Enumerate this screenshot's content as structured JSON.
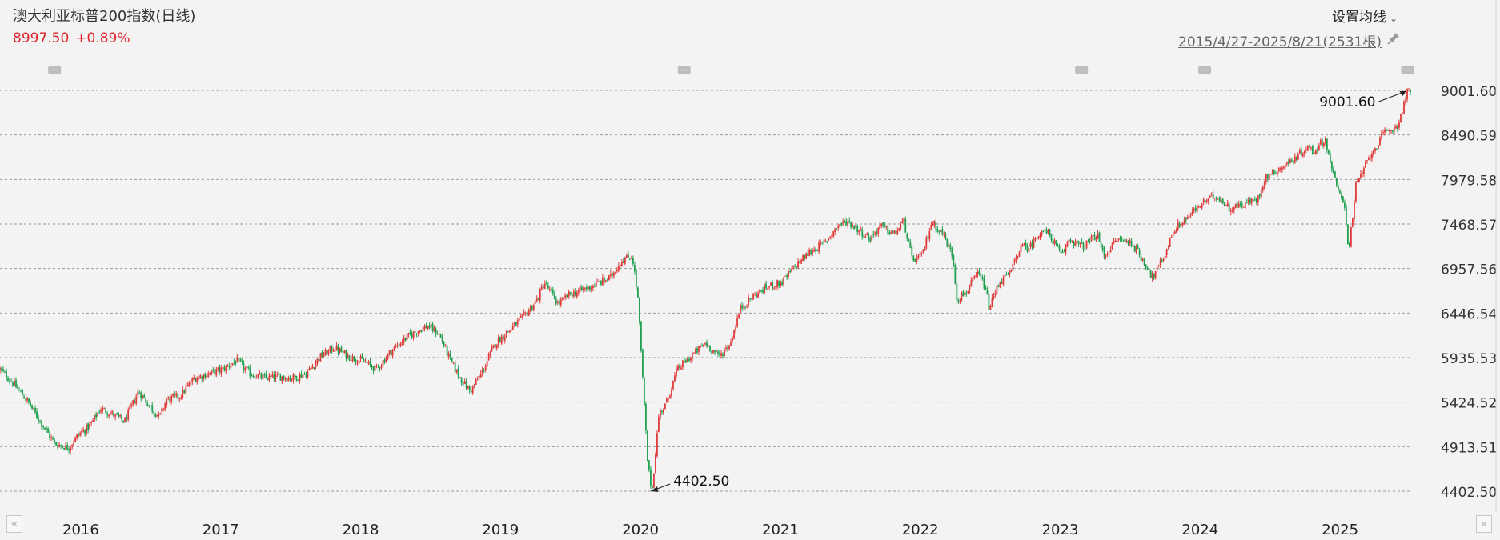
{
  "header": {
    "title": "澳大利亚标普200指数(日线)",
    "last_price": "8997.50",
    "change_pct": "+0.89%",
    "ma_settings_label": "设置均线",
    "date_range": "2015/4/27-2025/8/21(2531根)"
  },
  "colors": {
    "up": "#e03a3a",
    "down": "#20a050",
    "price_text": "#e0262f",
    "grid": "#9a9a9a",
    "background": "#f3f3f3"
  },
  "icons": {
    "ma_dropdown": "chevron-down-icon",
    "pin": "pin-icon",
    "nav_left": "double-chevron-left-icon",
    "nav_right": "double-chevron-right-icon",
    "event_marker": "event-marker-icon"
  },
  "chart_data": {
    "type": "candlestick",
    "title": "澳大利亚标普200指数(日线)",
    "y_ticks": [
      "9001.60",
      "8490.59",
      "7979.58",
      "7468.57",
      "6957.56",
      "6446.54",
      "5935.53",
      "5424.52",
      "4913.51",
      "4402.50"
    ],
    "ylim": [
      4402.5,
      9001.6
    ],
    "x_tick_labels": [
      "2016",
      "2017",
      "2018",
      "2019",
      "2020",
      "2021",
      "2022",
      "2023",
      "2024",
      "2025"
    ],
    "x_tick_positions": [
      2016.0,
      2017.0,
      2018.0,
      2019.0,
      2020.0,
      2021.0,
      2022.0,
      2023.0,
      2024.0,
      2025.0
    ],
    "x_range": [
      2015.56,
      2025.64
    ],
    "grid": "horizontal-dashed",
    "annotations": [
      {
        "text": "9001.60",
        "x": 2025.62,
        "y": 9001.6,
        "kind": "high"
      },
      {
        "text": "4402.50",
        "x": 2020.2,
        "y": 4402.5,
        "kind": "low"
      }
    ],
    "event_markers_x": [
      2015.95,
      2020.45,
      2023.29,
      2024.17,
      2025.62
    ],
    "series": [
      {
        "x": [
          2015.56,
          2015.65,
          2015.75,
          2015.85,
          2015.95,
          2016.05,
          2016.12,
          2016.2,
          2016.28,
          2016.35,
          2016.45,
          2016.55,
          2016.62,
          2016.7,
          2016.75,
          2016.85,
          2016.95,
          2017.05,
          2017.15,
          2017.25,
          2017.35,
          2017.45,
          2017.55,
          2017.65,
          2017.75,
          2017.85,
          2017.95,
          2018.05,
          2018.15,
          2018.25,
          2018.35,
          2018.45,
          2018.55,
          2018.62,
          2018.7,
          2018.78,
          2018.85,
          2018.92,
          2019.0,
          2019.1,
          2019.2,
          2019.3,
          2019.4,
          2019.45,
          2019.55,
          2019.62,
          2019.7,
          2019.78,
          2019.85,
          2019.92,
          2020.0,
          2020.08,
          2020.12,
          2020.16,
          2020.19,
          2020.22,
          2020.27,
          2020.32,
          2020.4,
          2020.5,
          2020.6,
          2020.7,
          2020.78,
          2020.85,
          2020.95,
          2021.05,
          2021.15,
          2021.25,
          2021.35,
          2021.45,
          2021.55,
          2021.62,
          2021.7,
          2021.78,
          2021.85,
          2021.95,
          2022.02,
          2022.08,
          2022.15,
          2022.22,
          2022.3,
          2022.37,
          2022.4,
          2022.47,
          2022.55,
          2022.6,
          2022.63,
          2022.7,
          2022.78,
          2022.85,
          2022.92,
          2023.0,
          2023.06,
          2023.15,
          2023.2,
          2023.3,
          2023.4,
          2023.45,
          2023.55,
          2023.65,
          2023.75,
          2023.8,
          2023.88,
          2023.95,
          2024.05,
          2024.15,
          2024.25,
          2024.35,
          2024.45,
          2024.55,
          2024.6,
          2024.7,
          2024.8,
          2024.9,
          2024.95,
          2025.03,
          2025.08,
          2025.12,
          2025.17,
          2025.2,
          2025.25,
          2025.35,
          2025.45,
          2025.55,
          2025.62
        ],
        "values": [
          5800,
          5650,
          5450,
          5200,
          4950,
          4900,
          5050,
          5150,
          5350,
          5300,
          5200,
          5550,
          5400,
          5250,
          5450,
          5500,
          5700,
          5750,
          5800,
          5900,
          5750,
          5700,
          5720,
          5700,
          5750,
          5950,
          6050,
          5950,
          5900,
          5800,
          6000,
          6150,
          6250,
          6300,
          6200,
          5900,
          5700,
          5550,
          5750,
          6100,
          6250,
          6400,
          6600,
          6800,
          6550,
          6650,
          6700,
          6750,
          6800,
          6850,
          7050,
          7100,
          6600,
          5500,
          4700,
          4402.5,
          5300,
          5400,
          5800,
          5950,
          6100,
          5950,
          6100,
          6500,
          6650,
          6750,
          6800,
          7000,
          7150,
          7250,
          7450,
          7500,
          7400,
          7300,
          7450,
          7350,
          7500,
          7050,
          7100,
          7500,
          7350,
          7100,
          6600,
          6700,
          6900,
          6750,
          6500,
          6800,
          6900,
          7200,
          7200,
          7400,
          7350,
          7100,
          7300,
          7200,
          7350,
          7100,
          7300,
          7250,
          7000,
          6850,
          7100,
          7400,
          7550,
          7700,
          7800,
          7650,
          7700,
          7750,
          8000,
          8100,
          8200,
          8350,
          8300,
          8450,
          8100,
          7850,
          7700,
          7150,
          7900,
          8250,
          8500,
          8600,
          8997.5
        ]
      }
    ]
  }
}
